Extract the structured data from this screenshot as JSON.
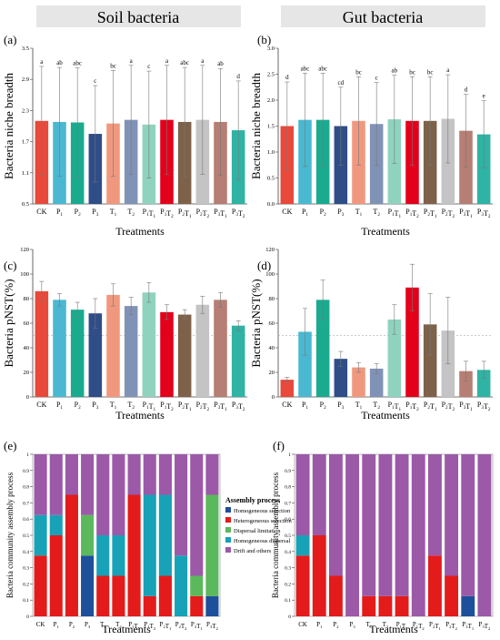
{
  "header": {
    "soil": "Soil bacteria",
    "gut": "Gut bacteria"
  },
  "colors": [
    "#e8493a",
    "#4ab8d0",
    "#1aab8f",
    "#2f4d87",
    "#f0987e",
    "#8093b6",
    "#8fd3bf",
    "#e3001b",
    "#7e6149",
    "#c4c4c4",
    "#b67e74",
    "#2fb3a5"
  ],
  "process_colors": {
    "Homogeneous selection": "#1e4f9a",
    "Heterogeneous selection": "#e31b1b",
    "Dispersal limitation": "#5cb85c",
    "Homogeneous dispersal": "#17a2b8",
    "Drift and others": "#9b59a8"
  },
  "chart_data": [
    {
      "id": "a",
      "panel_label": "(a)",
      "type": "bar",
      "xlabel": "Treatments",
      "ylabel": "Bacteria niche breadth",
      "ylim": [
        0.5,
        3.5
      ],
      "yticks": [
        "0.5",
        "1.1",
        "1.7",
        "2.3",
        "2.9",
        "3.5"
      ],
      "ticktype": "num",
      "categories": [
        "CK",
        "P1",
        "P2",
        "P3",
        "T1",
        "T2",
        "P1T1",
        "P1T2",
        "P2T1",
        "P2T2",
        "P3T1",
        "P3T2"
      ],
      "values": [
        2.1,
        2.08,
        2.07,
        1.85,
        2.05,
        2.12,
        2.03,
        2.12,
        2.08,
        2.12,
        2.08,
        1.92
      ],
      "err": [
        1.05,
        1.05,
        1.05,
        0.93,
        1.02,
        1.05,
        1.03,
        1.05,
        1.05,
        1.05,
        1.03,
        0.95
      ],
      "letters": [
        "a",
        "ab",
        "abc",
        "c",
        "bc",
        "a",
        "c",
        "a",
        "abc",
        "a",
        "ab",
        "d"
      ]
    },
    {
      "id": "b",
      "panel_label": "(b)",
      "type": "bar",
      "xlabel": "Treatments",
      "ylabel": "Bacteria niche breadth",
      "ylim": [
        0,
        3
      ],
      "yticks": [
        "0.0",
        "0.5",
        "1.0",
        "1.5",
        "2.0",
        "2.5",
        "3.0"
      ],
      "ticktype": "num",
      "categories": [
        "CK",
        "P1",
        "P2",
        "P3",
        "T1",
        "T2",
        "P1T1",
        "P1T2",
        "P2T1",
        "P2T2",
        "P3T1",
        "P3T2"
      ],
      "values": [
        1.5,
        1.62,
        1.62,
        1.5,
        1.6,
        1.54,
        1.63,
        1.6,
        1.6,
        1.64,
        1.41,
        1.34
      ],
      "err": [
        0.85,
        0.9,
        0.9,
        0.75,
        0.85,
        0.8,
        0.85,
        0.85,
        0.85,
        0.85,
        0.7,
        0.65
      ],
      "letters": [
        "d",
        "abc",
        "abc",
        "cd",
        "bc",
        "c",
        "ab",
        "bc",
        "bc",
        "a",
        "d",
        "e"
      ]
    },
    {
      "id": "c",
      "panel_label": "(c)",
      "type": "bar",
      "xlabel": "Treatments",
      "ylabel": "Bacteria  pNST(%)",
      "ylim": [
        0,
        120
      ],
      "yticks": [
        "0",
        "20",
        "40",
        "60",
        "80",
        "100",
        "120"
      ],
      "ticktype": "num",
      "refline": 50,
      "categories": [
        "CK",
        "P1",
        "P2",
        "P3",
        "T1",
        "T2",
        "P1T1",
        "P1T2",
        "P2T1",
        "P2T2",
        "P3T1",
        "P3T2"
      ],
      "values": [
        86,
        79,
        71,
        68,
        83,
        74,
        85,
        69,
        67,
        75,
        79,
        58
      ],
      "err": [
        8,
        5,
        6,
        12,
        9,
        7,
        8,
        6,
        4,
        7,
        6,
        4
      ]
    },
    {
      "id": "d",
      "panel_label": "(d)",
      "type": "bar",
      "xlabel": "Treatments",
      "ylabel": "Bacteria  pNST(%)",
      "ylim": [
        0,
        120
      ],
      "yticks": [
        "0",
        "20",
        "40",
        "60",
        "80",
        "100",
        "120"
      ],
      "ticktype": "num",
      "refline": 50,
      "categories": [
        "CK",
        "P1",
        "P2",
        "P3",
        "T1",
        "T2",
        "P1T1",
        "P1T2",
        "P2T1",
        "P2T2",
        "P3T1",
        "P3T2"
      ],
      "values": [
        14,
        53,
        79,
        31,
        24,
        23,
        63,
        89,
        59,
        54,
        21,
        22
      ],
      "err": [
        2,
        19,
        16,
        6,
        4,
        4,
        12,
        19,
        25,
        27,
        8,
        7
      ]
    },
    {
      "id": "e",
      "panel_label": "(e)",
      "type": "stacked_bar",
      "xlabel": "Treatments",
      "ylabel": "Bacteria  community assembly process",
      "ylim": [
        0,
        1
      ],
      "yticks": [
        "0",
        "0.1",
        "0.2",
        "0.3",
        "0.4",
        "0.5",
        "0.6",
        "0.7",
        "0.8",
        "0.9",
        "1"
      ],
      "ticktype": "frac",
      "legend_title": "Assembly process",
      "categories": [
        "CK",
        "P1",
        "P2",
        "P3",
        "T1",
        "T2",
        "P1T1",
        "P1T2",
        "P2T1",
        "P2T2",
        "P3T1",
        "P3T2"
      ],
      "series": [
        {
          "name": "Homogeneous selection",
          "values": [
            0,
            0,
            0,
            0.375,
            0,
            0,
            0,
            0,
            0,
            0,
            0,
            0.125
          ]
        },
        {
          "name": "Heterogeneous selection",
          "values": [
            0.375,
            0.5,
            0.75,
            0,
            0.25,
            0.25,
            0.75,
            0.125,
            0.25,
            0,
            0.125,
            0
          ]
        },
        {
          "name": "Dispersal limitation",
          "values": [
            0,
            0,
            0,
            0.25,
            0,
            0,
            0,
            0,
            0,
            0,
            0.125,
            0.625
          ]
        },
        {
          "name": "Homogeneous dispersal",
          "values": [
            0.25,
            0.125,
            0,
            0,
            0.25,
            0.25,
            0,
            0.625,
            0.5,
            0.375,
            0,
            0
          ]
        },
        {
          "name": "Drift and others",
          "values": [
            0.375,
            0.375,
            0.25,
            0.375,
            0.5,
            0.5,
            0.25,
            0.25,
            0.25,
            0.625,
            0.75,
            0.25
          ]
        }
      ]
    },
    {
      "id": "f",
      "panel_label": "(f)",
      "type": "stacked_bar",
      "xlabel": "Treatments",
      "ylabel": "Bacteria community assembly process",
      "ylim": [
        0,
        1
      ],
      "yticks": [
        "0",
        "0.1",
        "0.2",
        "0.3",
        "0.4",
        "0.5",
        "0.6",
        "0.7",
        "0.8",
        "0.9",
        "1"
      ],
      "ticktype": "frac",
      "categories": [
        "CK",
        "P1",
        "P2",
        "P3",
        "T1",
        "T2",
        "P1T1",
        "P1T2",
        "P2T1",
        "P2T2",
        "P3T1",
        "P3T2"
      ],
      "series": [
        {
          "name": "Homogeneous selection",
          "values": [
            0,
            0,
            0,
            0,
            0,
            0,
            0,
            0,
            0,
            0,
            0.125,
            0
          ]
        },
        {
          "name": "Heterogeneous selection",
          "values": [
            0.375,
            0.5,
            0.25,
            0,
            0.125,
            0.125,
            0.125,
            0,
            0.375,
            0.25,
            0,
            0
          ]
        },
        {
          "name": "Dispersal limitation",
          "values": [
            0,
            0,
            0,
            0,
            0,
            0,
            0,
            0,
            0,
            0,
            0,
            0
          ]
        },
        {
          "name": "Homogeneous dispersal",
          "values": [
            0.125,
            0,
            0,
            0,
            0,
            0,
            0,
            0,
            0,
            0,
            0,
            0
          ]
        },
        {
          "name": "Drift and others",
          "values": [
            0.5,
            0.5,
            0.75,
            1,
            0.875,
            0.875,
            0.875,
            1,
            0.625,
            0.75,
            0.875,
            1
          ]
        }
      ]
    }
  ]
}
